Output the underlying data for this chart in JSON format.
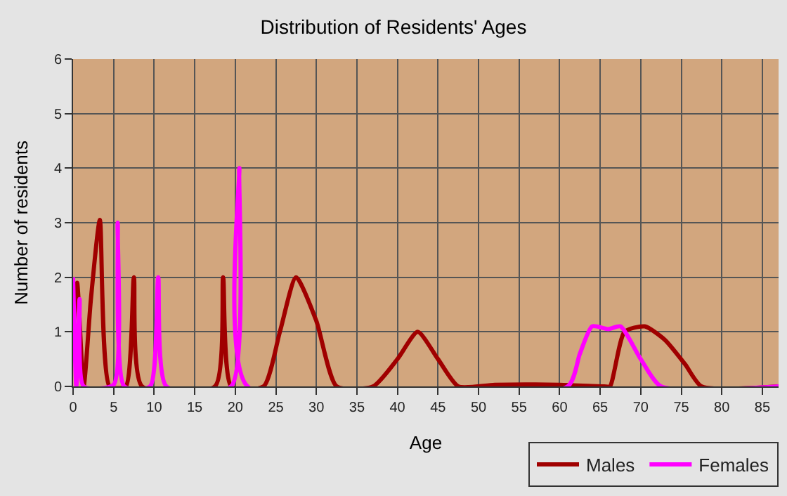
{
  "chart_data": {
    "type": "line",
    "title": "Distribution of Residents' Ages",
    "xlabel": "Age",
    "ylabel": "Number of residents",
    "xlim": [
      0,
      87
    ],
    "xticks": [
      0,
      5,
      10,
      15,
      20,
      25,
      30,
      35,
      40,
      45,
      50,
      55,
      60,
      65,
      70,
      75,
      80,
      85
    ],
    "ylim": [
      0,
      6
    ],
    "yticks": [
      0,
      1,
      2,
      3,
      4,
      5,
      6
    ],
    "grid": true,
    "legend": "bottom right",
    "marker": "none",
    "line_style": "solid",
    "series": [
      {
        "name": "Males",
        "color": "#a00000",
        "x": [
          0,
          0.5,
          1.3,
          2.2,
          3.3,
          4.5,
          6.5,
          7.5,
          8.5,
          17.5,
          18.5,
          19.5,
          23.5,
          25.5,
          27.5,
          30,
          32.5,
          37,
          40,
          42.5,
          45,
          47.5,
          52,
          60,
          65.5,
          66.2,
          68,
          70.5,
          73,
          75.5,
          77.5,
          87
        ],
        "values": [
          1,
          1.9,
          0,
          1.6,
          3.05,
          0,
          0,
          2,
          0,
          0,
          2,
          0,
          0,
          1,
          2,
          1.2,
          0,
          0,
          0.5,
          1,
          0.5,
          0,
          0.03,
          0.03,
          0,
          0,
          1,
          1.1,
          0.85,
          0.4,
          0,
          0
        ]
      },
      {
        "name": "Females",
        "color": "#ff00ff",
        "x": [
          0,
          0.4,
          0.8,
          1.3,
          5,
          5.5,
          6.3,
          9.5,
          10.5,
          11.5,
          19.5,
          20.5,
          21.5,
          61,
          62.5,
          64,
          66,
          67.5,
          70,
          72.5,
          87
        ],
        "values": [
          2,
          0,
          1.6,
          0,
          0.03,
          3,
          0,
          0,
          2,
          0,
          0,
          4,
          0,
          0,
          0.6,
          1.1,
          1.05,
          1.1,
          0.5,
          0,
          0
        ]
      }
    ]
  }
}
